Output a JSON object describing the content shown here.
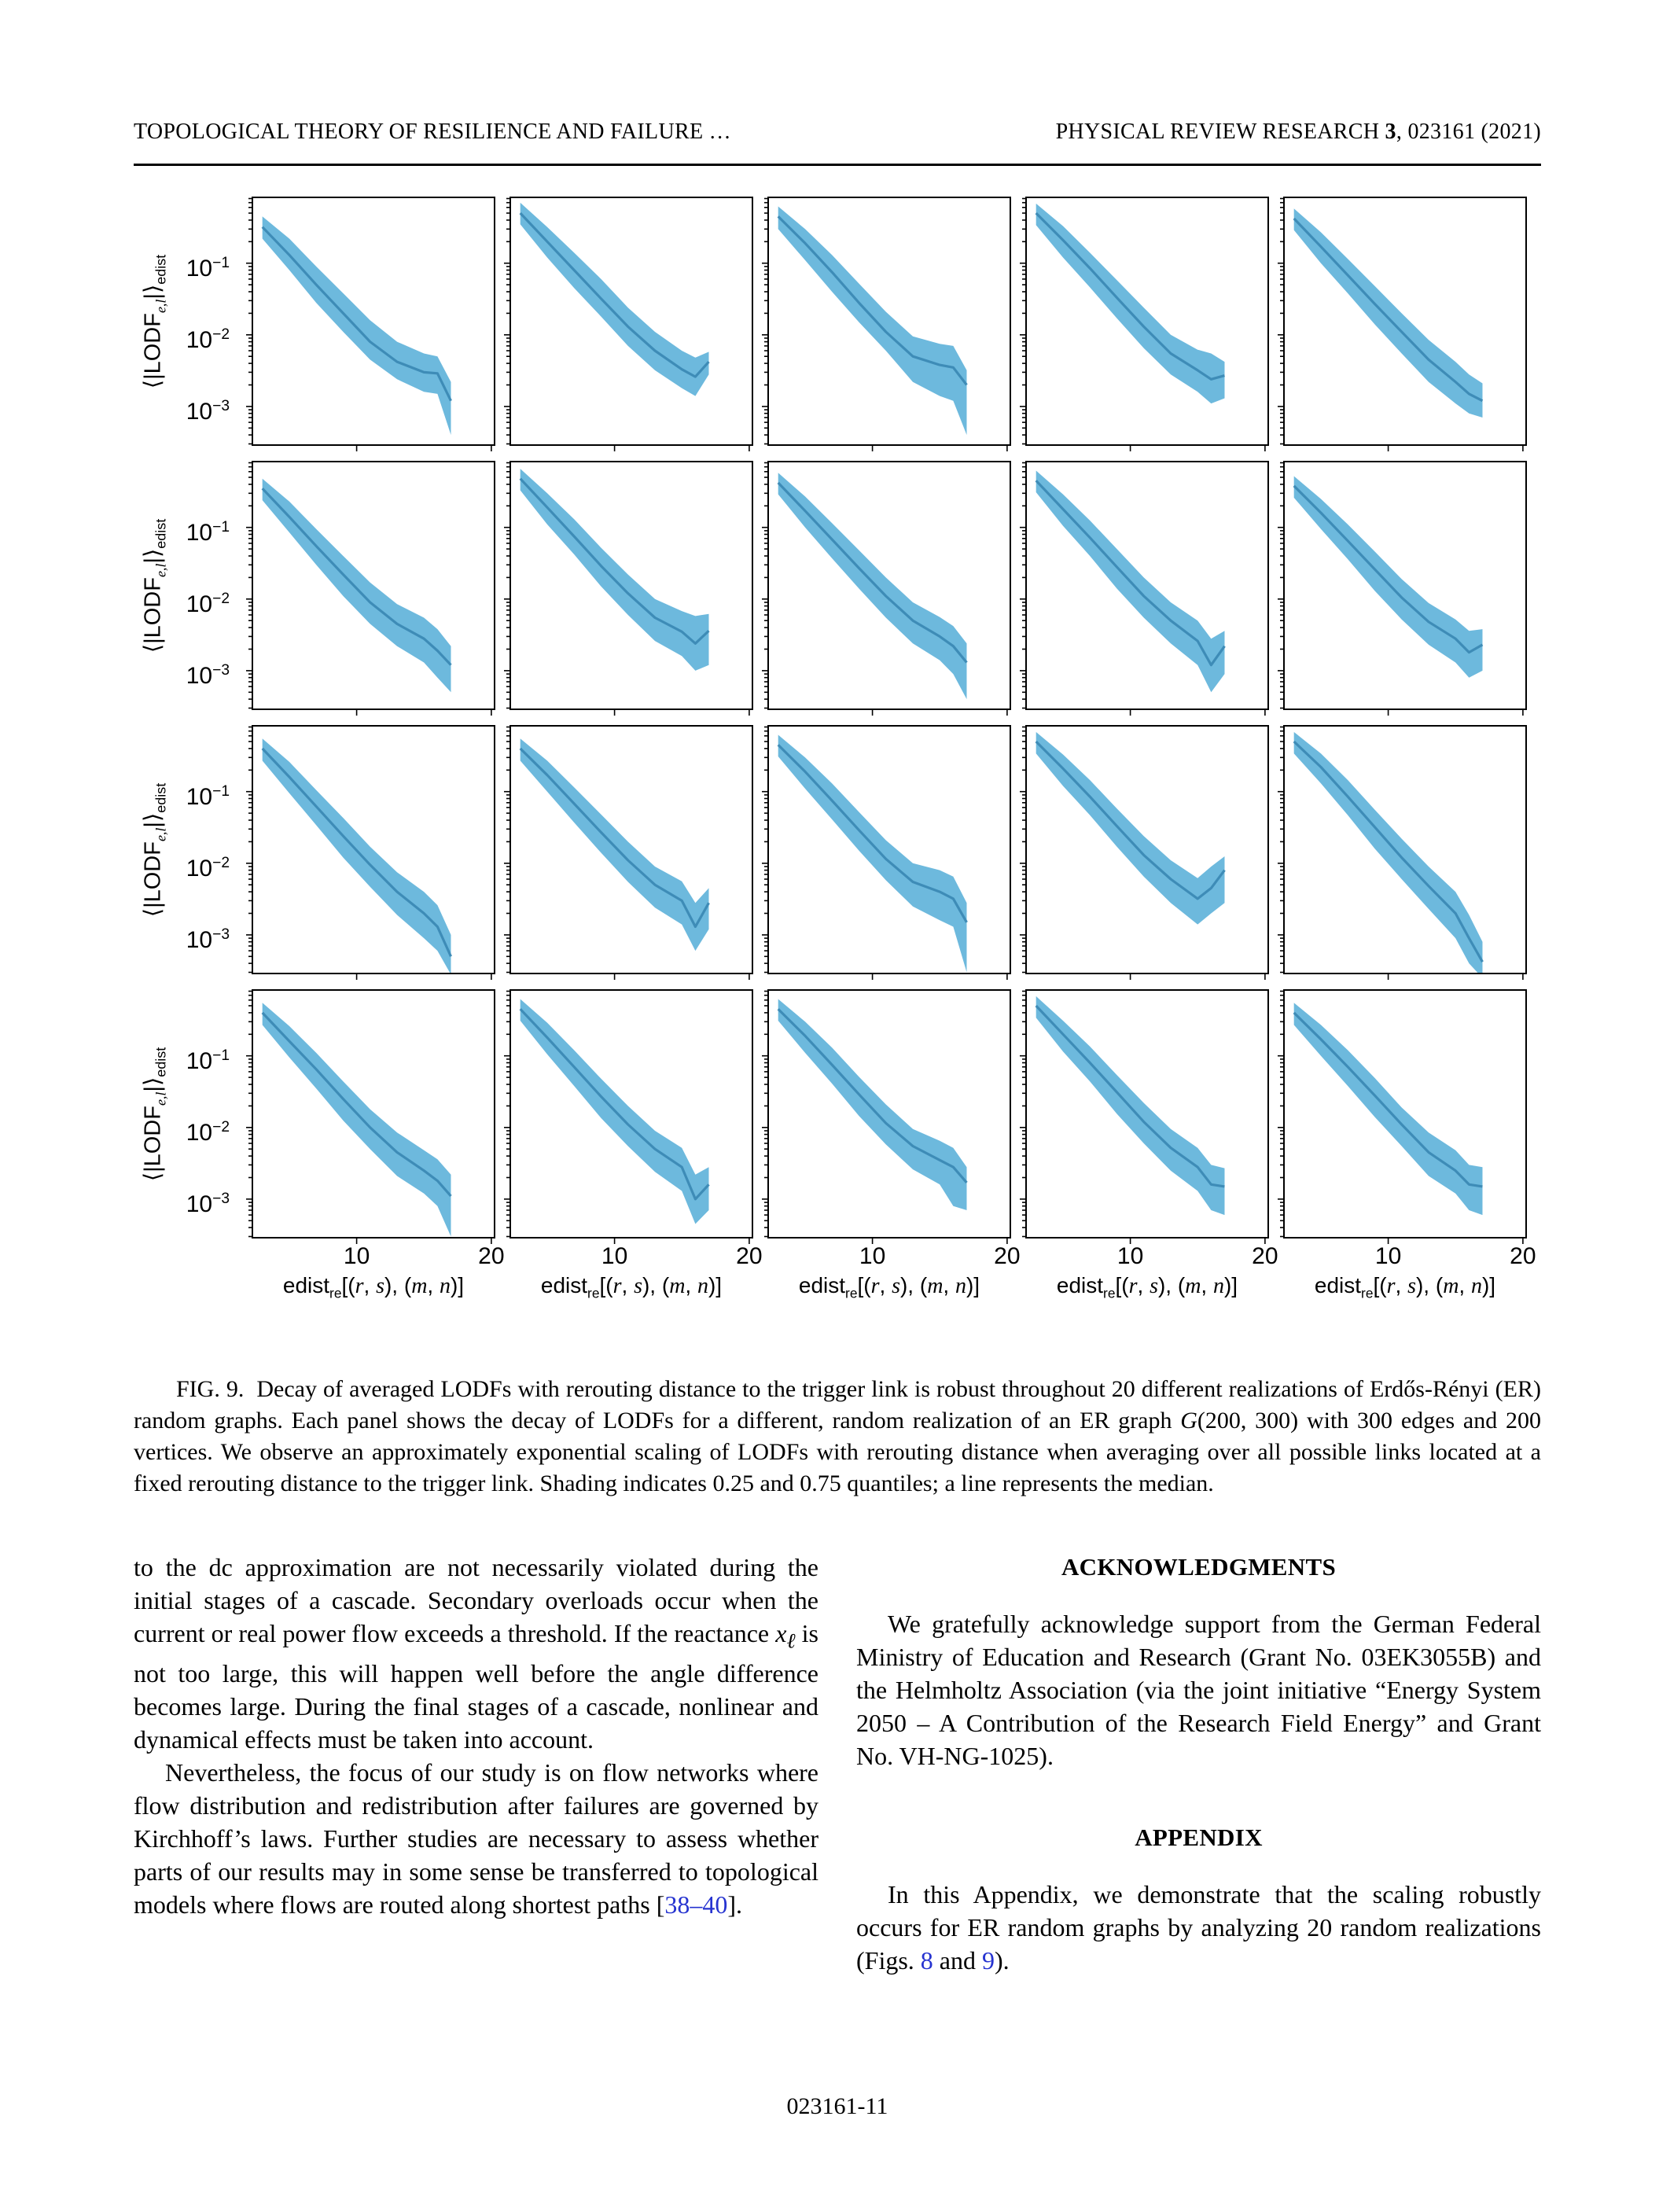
{
  "header": {
    "left": "TOPOLOGICAL THEORY OF RESILIENCE AND FAILURE …",
    "journal": "PHYSICAL REVIEW RESEARCH ",
    "volume": "3",
    "issue_info": ", 023161 (2021)"
  },
  "figure": {
    "y_label": {
      "plain": "⟨|LODF_{e,l}|⟩_edist",
      "parts": [
        {
          "t": "⟨|LODF"
        },
        {
          "t": "e,l",
          "sub": true,
          "i": true
        },
        {
          "t": "|⟩"
        },
        {
          "t": "edist",
          "sub": true
        }
      ]
    },
    "x_label": {
      "plain": "edist_re[(r, s), (m, n)]",
      "parts": [
        {
          "t": "edist"
        },
        {
          "t": "re",
          "sub": true
        },
        {
          "t": "[("
        },
        {
          "t": "r",
          "i": true
        },
        {
          "t": ", "
        },
        {
          "t": "s",
          "i": true
        },
        {
          "t": "), ("
        },
        {
          "t": "m",
          "i": true
        },
        {
          "t": ", "
        },
        {
          "t": "n",
          "i": true
        },
        {
          "t": ")]"
        }
      ]
    },
    "colors": {
      "band": "#6db9dd",
      "line": "#3e8cb7",
      "axis": "#000000"
    }
  },
  "chart_data": {
    "type": "line",
    "description": "4x5 grid of semilog-y decay curves; shaded band = 0.25–0.75 quantiles, line = median",
    "rows": 4,
    "cols": 5,
    "xlabel": "edist_re[(r,s),(m,n)]",
    "ylabel": "<|LODF_e,l|>_edist",
    "xlim": [
      2.2,
      20.3
    ],
    "ylim_log10": [
      -3.55,
      -0.07
    ],
    "x_ticks": [
      10,
      20
    ],
    "y_ticks_exp": [
      -1,
      -2,
      -3
    ],
    "grid": false,
    "x": [
      3,
      5,
      7,
      9,
      11,
      13,
      15,
      16,
      17
    ],
    "panels": [
      {
        "median": [
          0.32,
          0.13,
          0.05,
          0.02,
          0.008,
          0.0042,
          0.003,
          0.0029,
          0.0012
        ],
        "q25": [
          0.22,
          0.08,
          0.028,
          0.011,
          0.0045,
          0.0024,
          0.0016,
          0.0015,
          0.0004
        ],
        "q75": [
          0.45,
          0.22,
          0.09,
          0.038,
          0.016,
          0.008,
          0.0055,
          0.005,
          0.0022
        ]
      },
      {
        "median": [
          0.5,
          0.2,
          0.08,
          0.032,
          0.013,
          0.006,
          0.0033,
          0.0026,
          0.0042
        ],
        "q25": [
          0.35,
          0.12,
          0.045,
          0.018,
          0.007,
          0.0032,
          0.0018,
          0.0014,
          0.0028
        ],
        "q75": [
          0.7,
          0.32,
          0.14,
          0.06,
          0.024,
          0.011,
          0.006,
          0.0048,
          0.0058
        ]
      },
      {
        "median": [
          0.45,
          0.19,
          0.075,
          0.028,
          0.011,
          0.005,
          0.0038,
          0.0035,
          0.002
        ],
        "q25": [
          0.3,
          0.11,
          0.04,
          0.015,
          0.006,
          0.0022,
          0.0014,
          0.0012,
          0.0004
        ],
        "q75": [
          0.62,
          0.3,
          0.13,
          0.052,
          0.021,
          0.0095,
          0.0075,
          0.007,
          0.0032
        ]
      },
      {
        "median": [
          0.5,
          0.21,
          0.085,
          0.033,
          0.013,
          0.0055,
          0.0032,
          0.0024,
          0.0027
        ],
        "q25": [
          0.34,
          0.12,
          0.046,
          0.017,
          0.0065,
          0.0028,
          0.0016,
          0.0011,
          0.0013
        ],
        "q75": [
          0.68,
          0.33,
          0.14,
          0.058,
          0.024,
          0.01,
          0.0062,
          0.0055,
          0.0042
        ]
      },
      {
        "median": [
          0.42,
          0.17,
          0.068,
          0.027,
          0.011,
          0.0045,
          0.0022,
          0.0015,
          0.0012
        ],
        "q25": [
          0.29,
          0.1,
          0.038,
          0.014,
          0.0055,
          0.0022,
          0.0011,
          0.0008,
          0.0007
        ],
        "q75": [
          0.58,
          0.27,
          0.115,
          0.048,
          0.02,
          0.0085,
          0.0042,
          0.0028,
          0.0021
        ]
      },
      {
        "median": [
          0.35,
          0.14,
          0.055,
          0.022,
          0.009,
          0.0045,
          0.0028,
          0.0019,
          0.0012
        ],
        "q25": [
          0.24,
          0.085,
          0.03,
          0.011,
          0.0045,
          0.0022,
          0.0013,
          0.0008,
          0.0005
        ],
        "q75": [
          0.48,
          0.23,
          0.095,
          0.04,
          0.017,
          0.0085,
          0.0055,
          0.0038,
          0.0022
        ]
      },
      {
        "median": [
          0.48,
          0.19,
          0.075,
          0.029,
          0.012,
          0.0055,
          0.0035,
          0.0024,
          0.0036
        ],
        "q25": [
          0.33,
          0.11,
          0.042,
          0.015,
          0.006,
          0.0026,
          0.0016,
          0.001,
          0.0012
        ],
        "q75": [
          0.66,
          0.3,
          0.13,
          0.052,
          0.022,
          0.01,
          0.0068,
          0.0058,
          0.0062
        ]
      },
      {
        "median": [
          0.42,
          0.17,
          0.068,
          0.027,
          0.011,
          0.005,
          0.003,
          0.0022,
          0.0013
        ],
        "q25": [
          0.29,
          0.1,
          0.037,
          0.014,
          0.0055,
          0.0024,
          0.0014,
          0.0009,
          0.0004
        ],
        "q75": [
          0.58,
          0.27,
          0.115,
          0.048,
          0.02,
          0.009,
          0.0056,
          0.0042,
          0.0024
        ]
      },
      {
        "median": [
          0.45,
          0.18,
          0.072,
          0.028,
          0.011,
          0.005,
          0.0026,
          0.0012,
          0.0022
        ],
        "q25": [
          0.31,
          0.105,
          0.04,
          0.014,
          0.0055,
          0.0024,
          0.0012,
          0.0005,
          0.0009
        ],
        "q75": [
          0.62,
          0.29,
          0.125,
          0.05,
          0.02,
          0.009,
          0.005,
          0.0028,
          0.0036
        ]
      },
      {
        "median": [
          0.38,
          0.16,
          0.065,
          0.026,
          0.0105,
          0.0048,
          0.0028,
          0.0018,
          0.0023
        ],
        "q25": [
          0.26,
          0.095,
          0.036,
          0.013,
          0.0052,
          0.0023,
          0.0013,
          0.0008,
          0.001
        ],
        "q75": [
          0.52,
          0.25,
          0.11,
          0.046,
          0.019,
          0.0088,
          0.0052,
          0.0036,
          0.0038
        ]
      },
      {
        "median": [
          0.4,
          0.16,
          0.062,
          0.024,
          0.0095,
          0.004,
          0.002,
          0.0013,
          0.0005
        ],
        "q25": [
          0.27,
          0.095,
          0.034,
          0.012,
          0.0047,
          0.0019,
          0.0009,
          0.0006,
          0.00028
        ],
        "q75": [
          0.55,
          0.26,
          0.105,
          0.043,
          0.017,
          0.0075,
          0.004,
          0.0026,
          0.001
        ]
      },
      {
        "median": [
          0.4,
          0.17,
          0.068,
          0.027,
          0.011,
          0.005,
          0.003,
          0.0013,
          0.0028
        ],
        "q25": [
          0.27,
          0.1,
          0.037,
          0.014,
          0.0055,
          0.0024,
          0.0014,
          0.0006,
          0.0012
        ],
        "q75": [
          0.55,
          0.27,
          0.115,
          0.048,
          0.02,
          0.009,
          0.0056,
          0.0028,
          0.0045
        ]
      },
      {
        "median": [
          0.45,
          0.19,
          0.075,
          0.029,
          0.0115,
          0.0055,
          0.004,
          0.0032,
          0.0015
        ],
        "q25": [
          0.31,
          0.11,
          0.041,
          0.015,
          0.0058,
          0.0025,
          0.0016,
          0.0013,
          0.0003
        ],
        "q75": [
          0.62,
          0.3,
          0.13,
          0.052,
          0.021,
          0.01,
          0.008,
          0.0065,
          0.0028
        ]
      },
      {
        "median": [
          0.5,
          0.21,
          0.085,
          0.033,
          0.013,
          0.006,
          0.0032,
          0.0045,
          0.008
        ],
        "q25": [
          0.34,
          0.12,
          0.047,
          0.017,
          0.0065,
          0.0028,
          0.0014,
          0.002,
          0.0028
        ],
        "q75": [
          0.68,
          0.33,
          0.145,
          0.058,
          0.024,
          0.011,
          0.0062,
          0.009,
          0.0125
        ]
      },
      {
        "median": [
          0.5,
          0.22,
          0.085,
          0.032,
          0.012,
          0.0048,
          0.002,
          0.0009,
          0.00042
        ],
        "q25": [
          0.34,
          0.13,
          0.047,
          0.016,
          0.006,
          0.0023,
          0.0009,
          0.0004,
          0.00025
        ],
        "q75": [
          0.68,
          0.34,
          0.145,
          0.056,
          0.022,
          0.009,
          0.004,
          0.0019,
          0.0008
        ]
      },
      {
        "median": [
          0.4,
          0.16,
          0.065,
          0.025,
          0.01,
          0.0045,
          0.0025,
          0.0018,
          0.0011
        ],
        "q25": [
          0.27,
          0.095,
          0.035,
          0.0125,
          0.005,
          0.0021,
          0.0012,
          0.0008,
          0.0003
        ],
        "q75": [
          0.55,
          0.26,
          0.11,
          0.044,
          0.018,
          0.0085,
          0.0048,
          0.0036,
          0.0022
        ]
      },
      {
        "median": [
          0.45,
          0.18,
          0.07,
          0.027,
          0.011,
          0.005,
          0.0028,
          0.001,
          0.0016
        ],
        "q25": [
          0.31,
          0.105,
          0.038,
          0.0135,
          0.0055,
          0.0024,
          0.0013,
          0.00045,
          0.0007
        ],
        "q75": [
          0.62,
          0.29,
          0.12,
          0.048,
          0.02,
          0.009,
          0.0052,
          0.0022,
          0.0028
        ]
      },
      {
        "median": [
          0.45,
          0.19,
          0.075,
          0.029,
          0.0115,
          0.0055,
          0.0035,
          0.0028,
          0.0017
        ],
        "q25": [
          0.31,
          0.11,
          0.041,
          0.0145,
          0.0058,
          0.0026,
          0.0016,
          0.0008,
          0.0007
        ],
        "q75": [
          0.62,
          0.3,
          0.13,
          0.051,
          0.021,
          0.0095,
          0.0065,
          0.0052,
          0.0028
        ]
      },
      {
        "median": [
          0.5,
          0.2,
          0.08,
          0.031,
          0.012,
          0.0052,
          0.0028,
          0.0016,
          0.0015
        ],
        "q25": [
          0.34,
          0.115,
          0.044,
          0.0155,
          0.006,
          0.0025,
          0.0013,
          0.0007,
          0.0006
        ],
        "q75": [
          0.68,
          0.31,
          0.135,
          0.054,
          0.022,
          0.0095,
          0.0052,
          0.003,
          0.0027
        ]
      },
      {
        "median": [
          0.4,
          0.17,
          0.07,
          0.028,
          0.011,
          0.0045,
          0.0025,
          0.0016,
          0.0015
        ],
        "q25": [
          0.27,
          0.1,
          0.038,
          0.014,
          0.0055,
          0.0021,
          0.0012,
          0.0007,
          0.0006
        ],
        "q75": [
          0.55,
          0.27,
          0.12,
          0.049,
          0.019,
          0.0085,
          0.0048,
          0.003,
          0.0028
        ]
      }
    ]
  },
  "caption": {
    "label": "FIG. 9.",
    "pre": "Decay of averaged LODFs with rerouting distance to the trigger link is robust throughout 20 different realizations of Erdős-Rényi (ER) random graphs. Each panel shows the decay of LODFs for a different, random realization of an ER graph ",
    "g_var": "G",
    "post": "(200, 300) with 300 edges and 200 vertices. We observe an approximately exponential scaling of LODFs with rerouting distance when averaging over all possible links located at a fixed rerouting distance to the trigger link. Shading indicates 0.25 and 0.75 quantiles; a line represents the median."
  },
  "body": {
    "left": {
      "p1_pre": "to the dc approximation are not necessarily violated during the initial stages of a cascade. Secondary overloads occur when the current or real power flow exceeds a threshold. If the reactance ",
      "p1_var": "x",
      "p1_var_sub": "ℓ",
      "p1_post": " is not too large, this will happen well before the angle difference becomes large. During the final stages of a cascade, nonlinear and dynamical effects must be taken into account.",
      "p2_pre": "Nevertheless, the focus of our study is on flow networks where flow distribution and redistribution after failures are governed by Kirchhoff’s laws. Further studies are necessary to assess whether parts of our results may in some sense be transferred to topological models where flows are routed along shortest paths [",
      "p2_link": "38–40",
      "p2_post": "]."
    },
    "right": {
      "ack_heading": "ACKNOWLEDGMENTS",
      "ack_text": "We gratefully acknowledge support from the German Federal Ministry of Education and Research (Grant No. 03EK3055B) and the Helmholtz Association (via the joint initiative “Energy System 2050 – A Contribution of the Research Field Energy” and Grant No. VH-NG-1025).",
      "appendix_heading": "APPENDIX",
      "app_pre": "In this Appendix, we demonstrate that the scaling robustly occurs for ER random graphs by analyzing 20 random realizations (Figs. ",
      "app_link1": "8",
      "app_mid": " and ",
      "app_link2": "9",
      "app_post": ")."
    }
  },
  "footer": {
    "page_number": "023161-11"
  }
}
